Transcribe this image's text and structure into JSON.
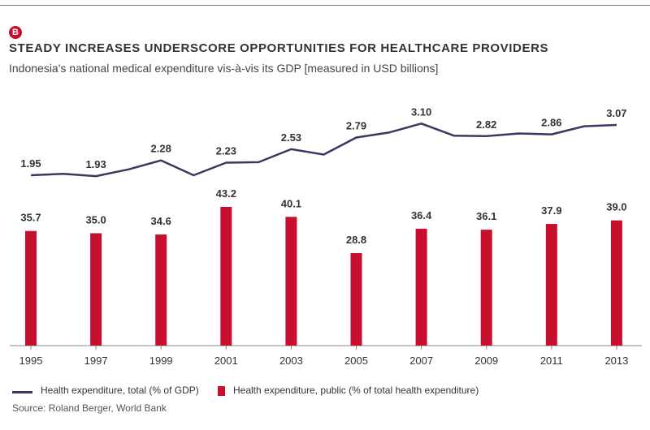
{
  "badge": "B",
  "chart_data": {
    "type": "bar+line",
    "title": "STEADY INCREASES UNDERSCORE OPPORTUNITIES FOR HEALTHCARE PROVIDERS",
    "subtitle": "Indonesia's national medical expenditure vis-à-vis its GDP [measured in USD billions]",
    "categories": [
      "1995",
      "1997",
      "1999",
      "2001",
      "2003",
      "2005",
      "2007",
      "2009",
      "2011",
      "2013"
    ],
    "line_series": {
      "name": "Health expenditure, total (% of GDP)",
      "color": "#3f3563",
      "x": [
        1995,
        1996,
        1997,
        1998,
        1999,
        2000,
        2001,
        2002,
        2003,
        2004,
        2005,
        2006,
        2007,
        2008,
        2009,
        2010,
        2011,
        2012,
        2013
      ],
      "values": [
        1.95,
        1.98,
        1.93,
        2.08,
        2.28,
        1.95,
        2.23,
        2.24,
        2.53,
        2.41,
        2.79,
        2.9,
        3.1,
        2.83,
        2.82,
        2.88,
        2.86,
        3.04,
        3.07
      ],
      "labels": [
        {
          "year": 1995,
          "text": "1.95"
        },
        {
          "year": 1997,
          "text": "1.93"
        },
        {
          "year": 1999,
          "text": "2.28"
        },
        {
          "year": 2001,
          "text": "2.23"
        },
        {
          "year": 2003,
          "text": "2.53"
        },
        {
          "year": 2005,
          "text": "2.79"
        },
        {
          "year": 2007,
          "text": "3.10"
        },
        {
          "year": 2009,
          "text": "2.82"
        },
        {
          "year": 2011,
          "text": "2.86"
        },
        {
          "year": 2013,
          "text": "3.07"
        }
      ]
    },
    "bar_series": {
      "name": "Health expenditure, public (% of total health expenditure)",
      "color": "#c8102e",
      "values": [
        35.7,
        35.0,
        34.6,
        43.2,
        40.1,
        28.8,
        36.4,
        36.1,
        37.9,
        39.0
      ],
      "labels": [
        "35.7",
        "35.0",
        "34.6",
        "43.2",
        "40.1",
        "28.8",
        "36.4",
        "36.1",
        "37.9",
        "39.0"
      ]
    },
    "ylim_line": [
      1.5,
      3.5
    ],
    "ylim_bar": [
      0,
      50
    ],
    "grid": false,
    "legend_placement": "bottom-left"
  },
  "legend": {
    "line_label": "Health expenditure, total (% of GDP)",
    "bar_label": "Health expenditure, public (% of total health expenditure)"
  },
  "source": "Source: Roland Berger, World Bank"
}
